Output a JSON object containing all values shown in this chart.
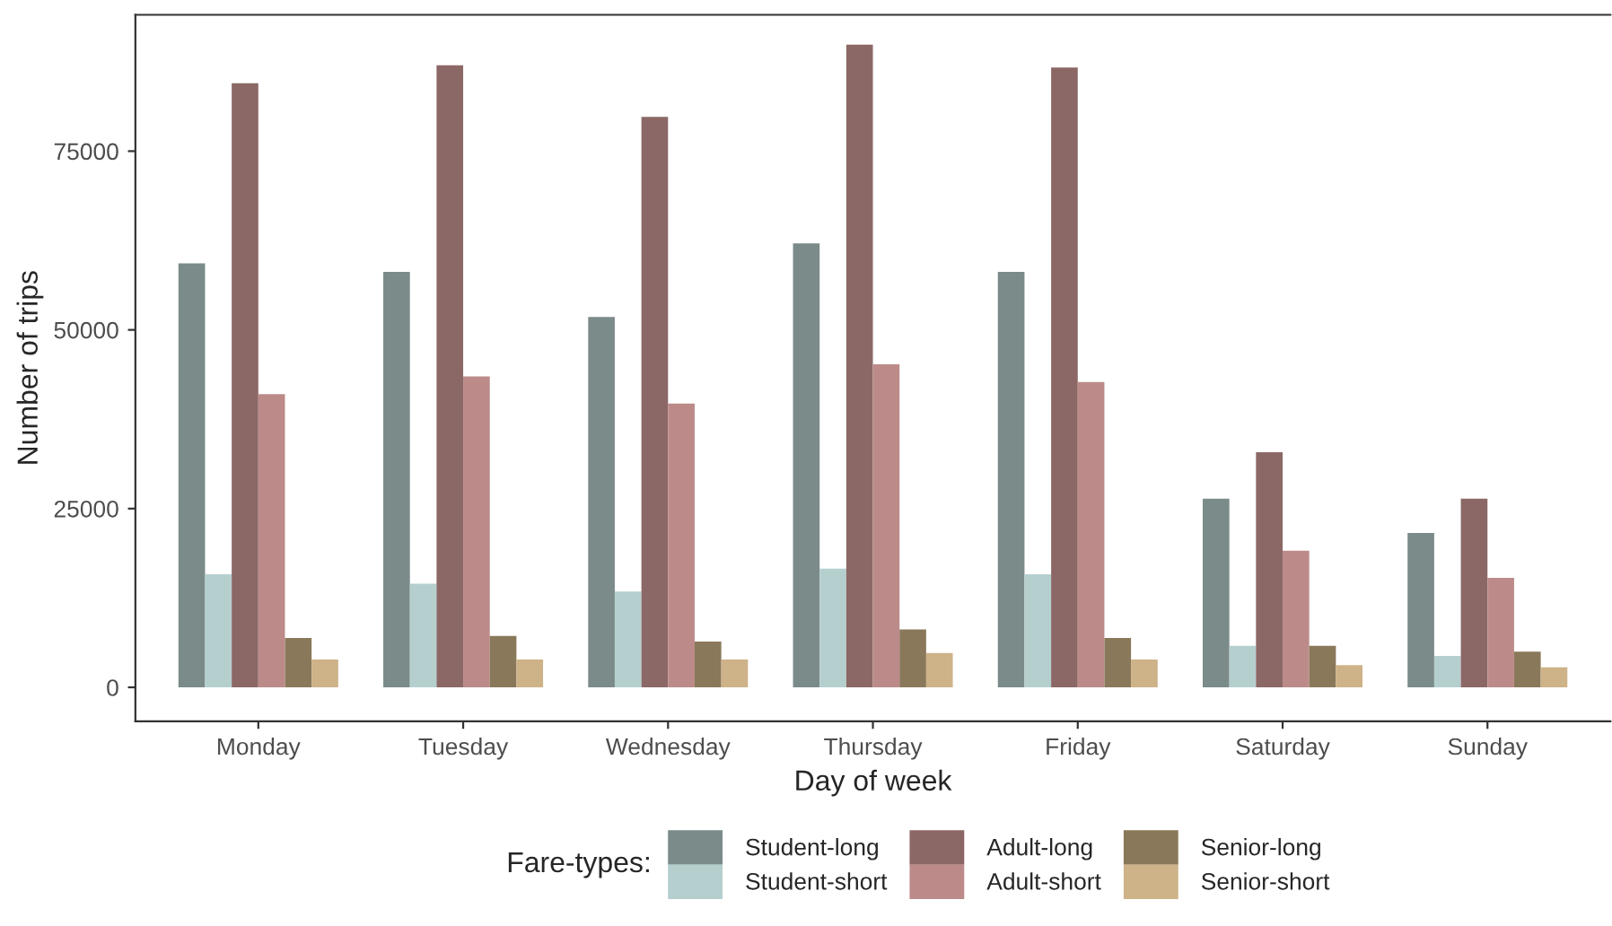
{
  "chart_data": {
    "type": "bar",
    "xlabel": "Day of week",
    "ylabel": "Number of trips",
    "legend_title": "Fare-types:",
    "categories": [
      "Monday",
      "Tuesday",
      "Wednesday",
      "Thursday",
      "Friday",
      "Saturday",
      "Sunday"
    ],
    "series": [
      {
        "name": "Student-long",
        "color": "#7b8b8a",
        "values": [
          59300,
          58100,
          51800,
          62100,
          58100,
          26400,
          21600
        ]
      },
      {
        "name": "Student-short",
        "color": "#b5cfcf",
        "values": [
          15800,
          14500,
          13400,
          16600,
          15800,
          5800,
          4400
        ]
      },
      {
        "name": "Adult-long",
        "color": "#8b6866",
        "values": [
          84500,
          87000,
          79800,
          89900,
          86700,
          32900,
          26400
        ]
      },
      {
        "name": "Adult-short",
        "color": "#bc8b89",
        "values": [
          41000,
          43500,
          39700,
          45200,
          42700,
          19100,
          15300
        ]
      },
      {
        "name": "Senior-long",
        "color": "#8a785a",
        "values": [
          6900,
          7200,
          6400,
          8100,
          6900,
          5800,
          5000
        ]
      },
      {
        "name": "Senior-short",
        "color": "#ceb288",
        "values": [
          3900,
          3900,
          3900,
          4800,
          3900,
          3100,
          2800
        ]
      }
    ],
    "ylim": [
      -4760,
      94070
    ],
    "yticks": [
      0,
      25000,
      50000,
      75000
    ],
    "grid": false,
    "legend": "bottom"
  }
}
